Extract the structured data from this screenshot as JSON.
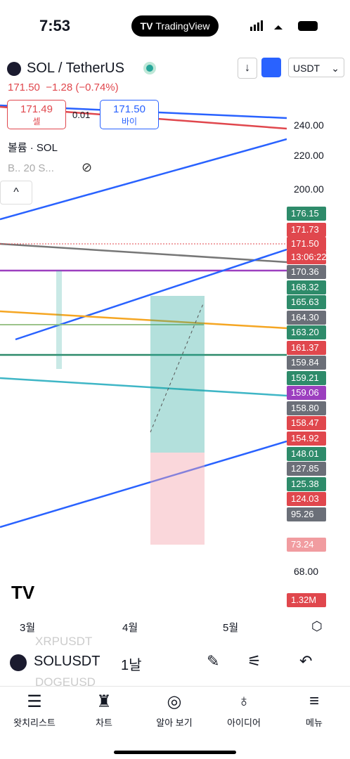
{
  "status_bar": {
    "time": "7:53",
    "app": "TradingView"
  },
  "header": {
    "symbol": "SOL / TetherUS",
    "currency": "USDT"
  },
  "quote": {
    "price": "171.50",
    "change": "−1.28 (−0.74%)"
  },
  "trade": {
    "sell_price": "171.49",
    "sell_label": "셀",
    "spread": "0.01",
    "buy_price": "171.50",
    "buy_label": "바이"
  },
  "indicators": {
    "volume": "볼륨 · SOL",
    "ma": "B.. 20 S..."
  },
  "price_axis": {
    "plain": [
      "240.00",
      "220.00",
      "200.00"
    ],
    "badges": [
      "176.15",
      "171.73",
      "171.50",
      "13:06:22",
      "170.36",
      "168.32",
      "165.63",
      "164.30",
      "163.20",
      "161.37",
      "159.84",
      "159.21",
      "159.06",
      "158.80",
      "158.47",
      "154.92",
      "148.01",
      "127.85",
      "125.38",
      "124.03",
      "95.26"
    ],
    "volume_axis": [
      "73.24",
      "68.00",
      "1.32M"
    ]
  },
  "x_axis": {
    "labels": [
      "3월",
      "4월",
      "5월"
    ]
  },
  "toolbar": {
    "symbol": "SOLUSDT",
    "interval": "1날",
    "ghost": [
      "XRPUSDT",
      "DOGEUSD"
    ]
  },
  "nav": [
    "왓치리스트",
    "차트",
    "알아 보기",
    "아이디어",
    "메뉴"
  ]
}
